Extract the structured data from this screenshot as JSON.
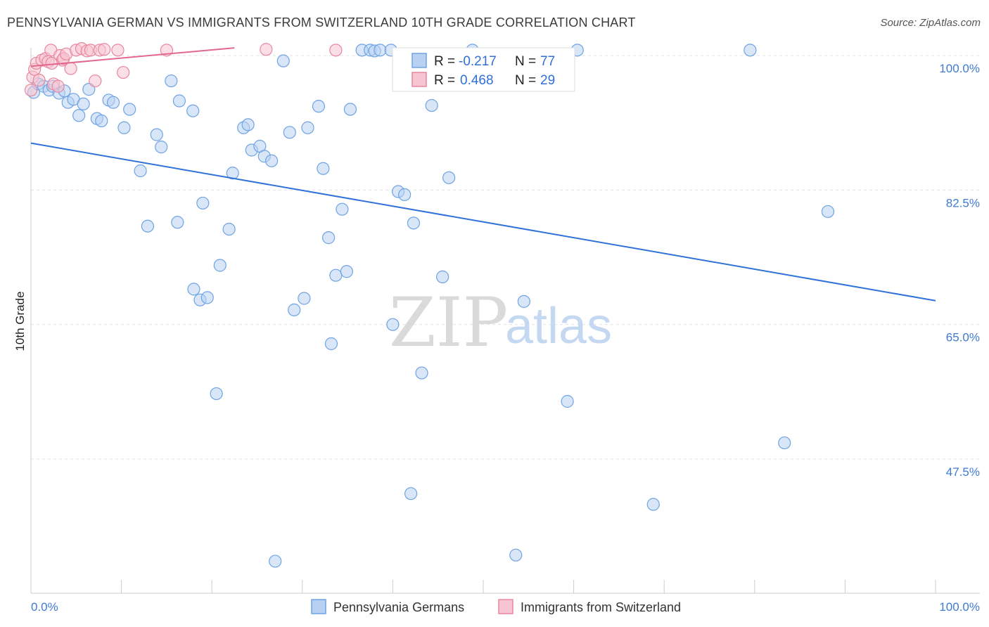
{
  "header": {
    "title": "PENNSYLVANIA GERMAN VS IMMIGRANTS FROM SWITZERLAND 10TH GRADE CORRELATION CHART",
    "source": "Source: ZipAtlas.com"
  },
  "watermark": {
    "zip": "ZIP",
    "atlas": "atlas"
  },
  "chart_data": {
    "type": "scatter",
    "title": "PENNSYLVANIA GERMAN VS IMMIGRANTS FROM SWITZERLAND 10TH GRADE CORRELATION CHART",
    "xlabel": "",
    "ylabel": "10th Grade",
    "xlim": [
      0,
      100
    ],
    "ylim": [
      30,
      101.5
    ],
    "x_tick_labels": [
      "0.0%",
      "100.0%"
    ],
    "y_ticks": [
      100,
      82.5,
      65,
      47.5
    ],
    "y_tick_labels": [
      "100.0%",
      "82.5%",
      "65.0%",
      "47.5%"
    ],
    "grid": true,
    "legend_position": "top-center",
    "series": [
      {
        "name": "Pennsylvania Germans",
        "color": "#6fa3e3",
        "fill": "#b8d1f3",
        "R": "-0.217",
        "N": "77",
        "trend": {
          "x": [
            0,
            100
          ],
          "y": [
            88.6,
            68.1
          ]
        },
        "points": [
          [
            0.3,
            95.2
          ],
          [
            0.8,
            96.3
          ],
          [
            1.4,
            96.0
          ],
          [
            2.0,
            95.5
          ],
          [
            2.4,
            96.0
          ],
          [
            3.1,
            95.1
          ],
          [
            3.7,
            95.4
          ],
          [
            4.1,
            93.9
          ],
          [
            4.7,
            94.3
          ],
          [
            5.3,
            92.2
          ],
          [
            5.8,
            93.7
          ],
          [
            6.4,
            95.6
          ],
          [
            7.3,
            91.8
          ],
          [
            7.8,
            91.5
          ],
          [
            8.6,
            94.2
          ],
          [
            9.1,
            93.9
          ],
          [
            10.3,
            90.6
          ],
          [
            10.9,
            93.0
          ],
          [
            12.1,
            85.0
          ],
          [
            12.9,
            77.8
          ],
          [
            13.9,
            89.7
          ],
          [
            14.4,
            88.1
          ],
          [
            15.5,
            96.7
          ],
          [
            16.2,
            78.3
          ],
          [
            16.4,
            94.1
          ],
          [
            17.9,
            92.8
          ],
          [
            18.7,
            68.2
          ],
          [
            18.0,
            69.6
          ],
          [
            19.0,
            80.8
          ],
          [
            19.5,
            68.5
          ],
          [
            20.5,
            56.0
          ],
          [
            20.9,
            72.7
          ],
          [
            21.9,
            77.4
          ],
          [
            22.3,
            84.7
          ],
          [
            23.5,
            90.6
          ],
          [
            24.0,
            91.0
          ],
          [
            24.4,
            87.7
          ],
          [
            25.3,
            88.2
          ],
          [
            25.8,
            86.9
          ],
          [
            26.6,
            86.3
          ],
          [
            27.0,
            34.2
          ],
          [
            27.9,
            99.3
          ],
          [
            28.6,
            90.0
          ],
          [
            29.1,
            66.9
          ],
          [
            30.2,
            68.4
          ],
          [
            30.6,
            90.6
          ],
          [
            31.8,
            93.4
          ],
          [
            32.3,
            85.3
          ],
          [
            32.9,
            76.3
          ],
          [
            33.2,
            62.5
          ],
          [
            33.7,
            71.4
          ],
          [
            34.4,
            80.0
          ],
          [
            34.9,
            71.9
          ],
          [
            35.3,
            93.0
          ],
          [
            36.6,
            100.7
          ],
          [
            37.5,
            100.7
          ],
          [
            38.0,
            100.6
          ],
          [
            38.6,
            100.7
          ],
          [
            39.8,
            100.7
          ],
          [
            40.0,
            65.0
          ],
          [
            40.6,
            82.3
          ],
          [
            41.3,
            81.9
          ],
          [
            42.0,
            43.0
          ],
          [
            42.3,
            78.2
          ],
          [
            43.2,
            58.7
          ],
          [
            44.3,
            93.5
          ],
          [
            45.5,
            71.2
          ],
          [
            46.2,
            84.1
          ],
          [
            48.8,
            100.7
          ],
          [
            53.6,
            35.0
          ],
          [
            54.5,
            68.0
          ],
          [
            59.3,
            55.0
          ],
          [
            60.4,
            100.7
          ],
          [
            68.8,
            41.6
          ],
          [
            88.1,
            79.7
          ],
          [
            83.3,
            49.6
          ],
          [
            79.5,
            100.7
          ]
        ]
      },
      {
        "name": "Immigrants from Switzerland",
        "color": "#e8879f",
        "fill": "#f7c4d2",
        "R": "0.468",
        "N": "29",
        "trend": {
          "x": [
            0,
            22.5
          ],
          "y": [
            98.6,
            101.0
          ]
        },
        "points": [
          [
            0.0,
            95.5
          ],
          [
            0.2,
            97.2
          ],
          [
            0.4,
            98.2
          ],
          [
            0.6,
            99.0
          ],
          [
            0.9,
            96.8
          ],
          [
            1.2,
            99.4
          ],
          [
            1.6,
            99.6
          ],
          [
            1.9,
            99.2
          ],
          [
            2.2,
            100.7
          ],
          [
            2.5,
            96.3
          ],
          [
            2.3,
            99.0
          ],
          [
            3.0,
            96.0
          ],
          [
            3.2,
            100.0
          ],
          [
            3.5,
            99.4
          ],
          [
            3.6,
            99.6
          ],
          [
            3.9,
            100.2
          ],
          [
            4.4,
            98.3
          ],
          [
            5.0,
            100.7
          ],
          [
            5.6,
            100.9
          ],
          [
            6.2,
            100.6
          ],
          [
            6.6,
            100.7
          ],
          [
            7.1,
            96.7
          ],
          [
            7.6,
            100.7
          ],
          [
            8.1,
            100.8
          ],
          [
            9.6,
            100.7
          ],
          [
            10.2,
            97.8
          ],
          [
            15.0,
            100.7
          ],
          [
            26.0,
            100.8
          ],
          [
            33.7,
            100.7
          ]
        ]
      }
    ]
  },
  "legend": {
    "r_label": "R =",
    "n_label": "N ="
  }
}
